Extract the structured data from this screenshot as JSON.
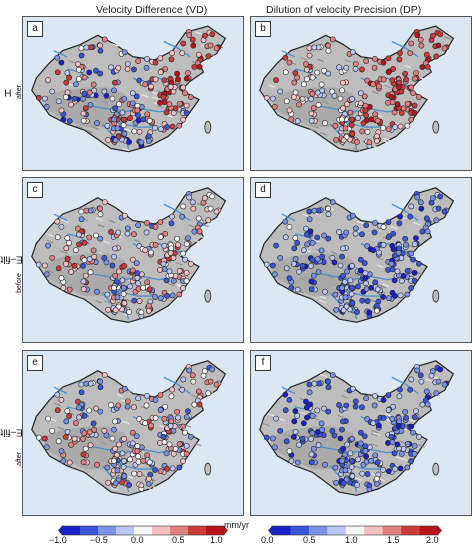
{
  "columns": {
    "left_title": "Velocity Difference (VD)",
    "right_title": "Dilution of velocity Precision (DP)"
  },
  "rows": [
    {
      "label": "H",
      "sub": "after"
    },
    {
      "label": "CME–filtered H",
      "sub": "before"
    },
    {
      "label": "CME–filtered H",
      "sub": "after"
    }
  ],
  "panels": [
    "a",
    "b",
    "c",
    "d",
    "e",
    "f"
  ],
  "colorbars": {
    "vd": {
      "ticks": [
        "−1.0",
        "−0.5",
        "0.0",
        "0.5",
        "1.0"
      ],
      "unit": "mm/yr",
      "colors": [
        "#1c20c8",
        "#3a55d8",
        "#7a93e6",
        "#b9c7f2",
        "#f3f3f3",
        "#f2c0c0",
        "#e08080",
        "#cc3a3a",
        "#b8141c"
      ]
    },
    "dp": {
      "ticks": [
        "0.0",
        "0.5",
        "1.0",
        "1.5",
        "2.0"
      ],
      "colors": [
        "#1c20c8",
        "#3a55d8",
        "#7a93e6",
        "#b9c7f2",
        "#f3f3f3",
        "#f2c0c0",
        "#e08080",
        "#cc3a3a",
        "#b8141c"
      ]
    }
  }
}
